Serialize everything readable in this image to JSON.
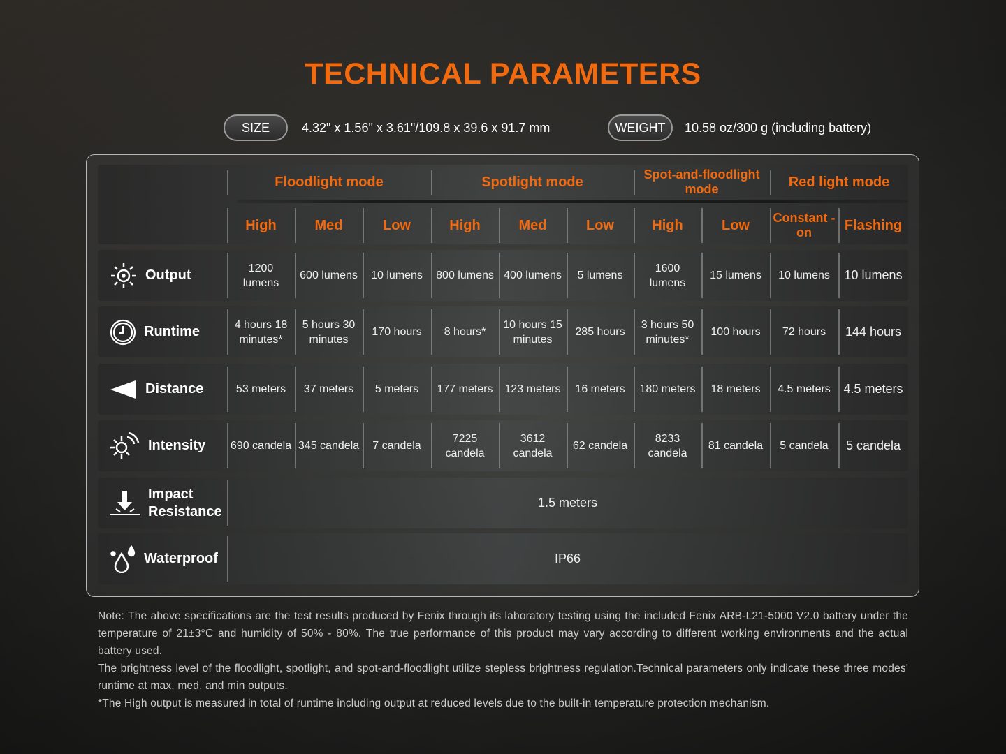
{
  "title": "TECHNICAL PARAMETERS",
  "size": {
    "label": "SIZE",
    "value": "4.32\" x 1.56\" x 3.61\"/109.8 x 39.6 x 91.7 mm"
  },
  "weight": {
    "label": "WEIGHT",
    "value": "10.58 oz/300 g (including battery)"
  },
  "colors": {
    "accent": "#f26a10"
  },
  "table": {
    "modes": [
      {
        "label": "Floodlight mode",
        "span": 3
      },
      {
        "label": "Spotlight mode",
        "span": 3
      },
      {
        "label": "Spot-and-floodlight mode",
        "span": 2
      },
      {
        "label": "Red light mode",
        "span": 2
      }
    ],
    "levels": [
      "High",
      "Med",
      "Low",
      "High",
      "Med",
      "Low",
      "High",
      "Low",
      "Constant -on",
      "Flashing"
    ],
    "rows": [
      {
        "label": "Output",
        "icon": "sun-icon",
        "cells": [
          "1200 lumens",
          "600 lumens",
          "10 lumens",
          "800 lumens",
          "400 lumens",
          "5 lumens",
          "1600 lumens",
          "15 lumens",
          "10 lumens",
          "10 lumens"
        ]
      },
      {
        "label": "Runtime",
        "icon": "clock-icon",
        "cells": [
          "4 hours 18 minutes*",
          "5 hours 30 minutes",
          "170 hours",
          "8 hours*",
          "10 hours 15 minutes",
          "285 hours",
          "3 hours 50 minutes*",
          "100 hours",
          "72 hours",
          "144 hours"
        ]
      },
      {
        "label": "Distance",
        "icon": "beam-icon",
        "cells": [
          "53 meters",
          "37 meters",
          "5 meters",
          "177 meters",
          "123 meters",
          "16 meters",
          "180 meters",
          "18 meters",
          "4.5 meters",
          "4.5 meters"
        ]
      },
      {
        "label": "Intensity",
        "icon": "intensity-icon",
        "cells": [
          "690 candela",
          "345 candela",
          "7 candela",
          "7225 candela",
          "3612 candela",
          "62 candela",
          "8233 candela",
          "81 candela",
          "5 candela",
          "5 candela"
        ]
      },
      {
        "label": "Impact Resistance",
        "icon": "impact-icon",
        "merged": "1.5 meters"
      },
      {
        "label": "Waterproof",
        "icon": "water-drops-icon",
        "merged": "IP66"
      }
    ]
  },
  "notes": [
    "Note: The above specifications are the test results produced by Fenix through its laboratory testing using the included Fenix ARB-L21-5000 V2.0 battery under the temperature of 21±3°C and humidity of 50% - 80%.  The true performance of this product may vary according to different working environments and the actual battery used.",
    "The brightness level of the floodlight, spotlight, and spot-and-floodlight utilize stepless brightness regulation.Technical parameters only indicate these three modes' runtime at max, med, and min outputs.",
    "*The High output is measured in total of runtime including output at reduced levels due to the built-in temperature protection mechanism."
  ]
}
